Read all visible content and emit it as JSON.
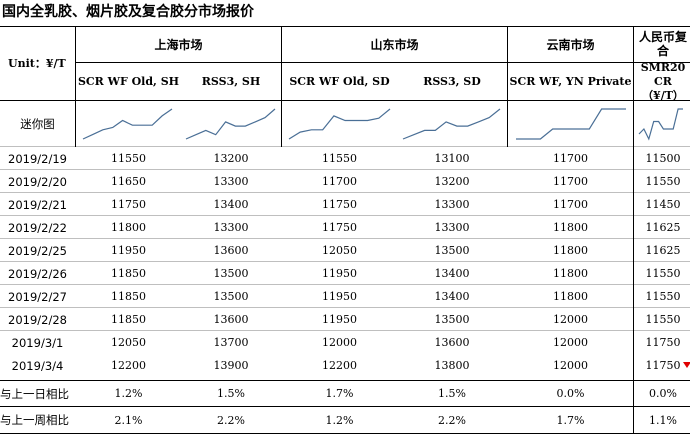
{
  "title": "国内全乳胶、烟片胶及复合胶分市场报价",
  "unit_label": "Unit：¥/T",
  "sparkline_label": "迷你图",
  "groups": [
    {
      "label": "上海市场"
    },
    {
      "label": "山东市场"
    },
    {
      "label": "云南市场"
    },
    {
      "label": "人民币复合"
    }
  ],
  "columns": [
    {
      "label": "SCR WF Old, SH"
    },
    {
      "label": "RSS3, SH"
    },
    {
      "label": "SCR WF Old, SD"
    },
    {
      "label": "RSS3, SD"
    },
    {
      "label": "SCR WF, YN Private"
    },
    {
      "label": "SMR20 CR（¥/T）"
    }
  ],
  "rows": [
    {
      "date": "2019/2/19",
      "values": [
        "11550",
        "13200",
        "11550",
        "13100",
        "11700",
        "11500"
      ]
    },
    {
      "date": "2019/2/20",
      "values": [
        "11650",
        "13300",
        "11700",
        "13200",
        "11700",
        "11550"
      ]
    },
    {
      "date": "2019/2/21",
      "values": [
        "11750",
        "13400",
        "11750",
        "13300",
        "11700",
        "11450"
      ]
    },
    {
      "date": "2019/2/22",
      "values": [
        "11800",
        "13300",
        "11750",
        "13300",
        "11800",
        "11625"
      ]
    },
    {
      "date": "2019/2/25",
      "values": [
        "11950",
        "13600",
        "12050",
        "13500",
        "11800",
        "11625"
      ]
    },
    {
      "date": "2019/2/26",
      "values": [
        "11850",
        "13500",
        "11950",
        "13400",
        "11800",
        "11550"
      ]
    },
    {
      "date": "2019/2/27",
      "values": [
        "11850",
        "13500",
        "11950",
        "13400",
        "11800",
        "11550"
      ]
    },
    {
      "date": "2019/2/28",
      "values": [
        "11850",
        "13600",
        "11950",
        "13500",
        "12000",
        "11550"
      ]
    },
    {
      "date": "2019/3/1",
      "values": [
        "12050",
        "13700",
        "12000",
        "13600",
        "12000",
        "11750"
      ]
    },
    {
      "date": "2019/3/4",
      "values": [
        "12200",
        "13900",
        "12200",
        "13800",
        "12000",
        "11750"
      ]
    }
  ],
  "summary": [
    {
      "label": "与上一日相比",
      "values": [
        "1.2%",
        "1.5%",
        "1.7%",
        "1.5%",
        "0.0%",
        "0.0%"
      ]
    },
    {
      "label": "与上一周相比",
      "values": [
        "2.1%",
        "2.2%",
        "1.2%",
        "2.2%",
        "1.7%",
        "1.1%"
      ]
    }
  ],
  "colors": {
    "sparkline": "#4a6f96",
    "marker": "#e00000",
    "grid": "#bfbfbf"
  }
}
